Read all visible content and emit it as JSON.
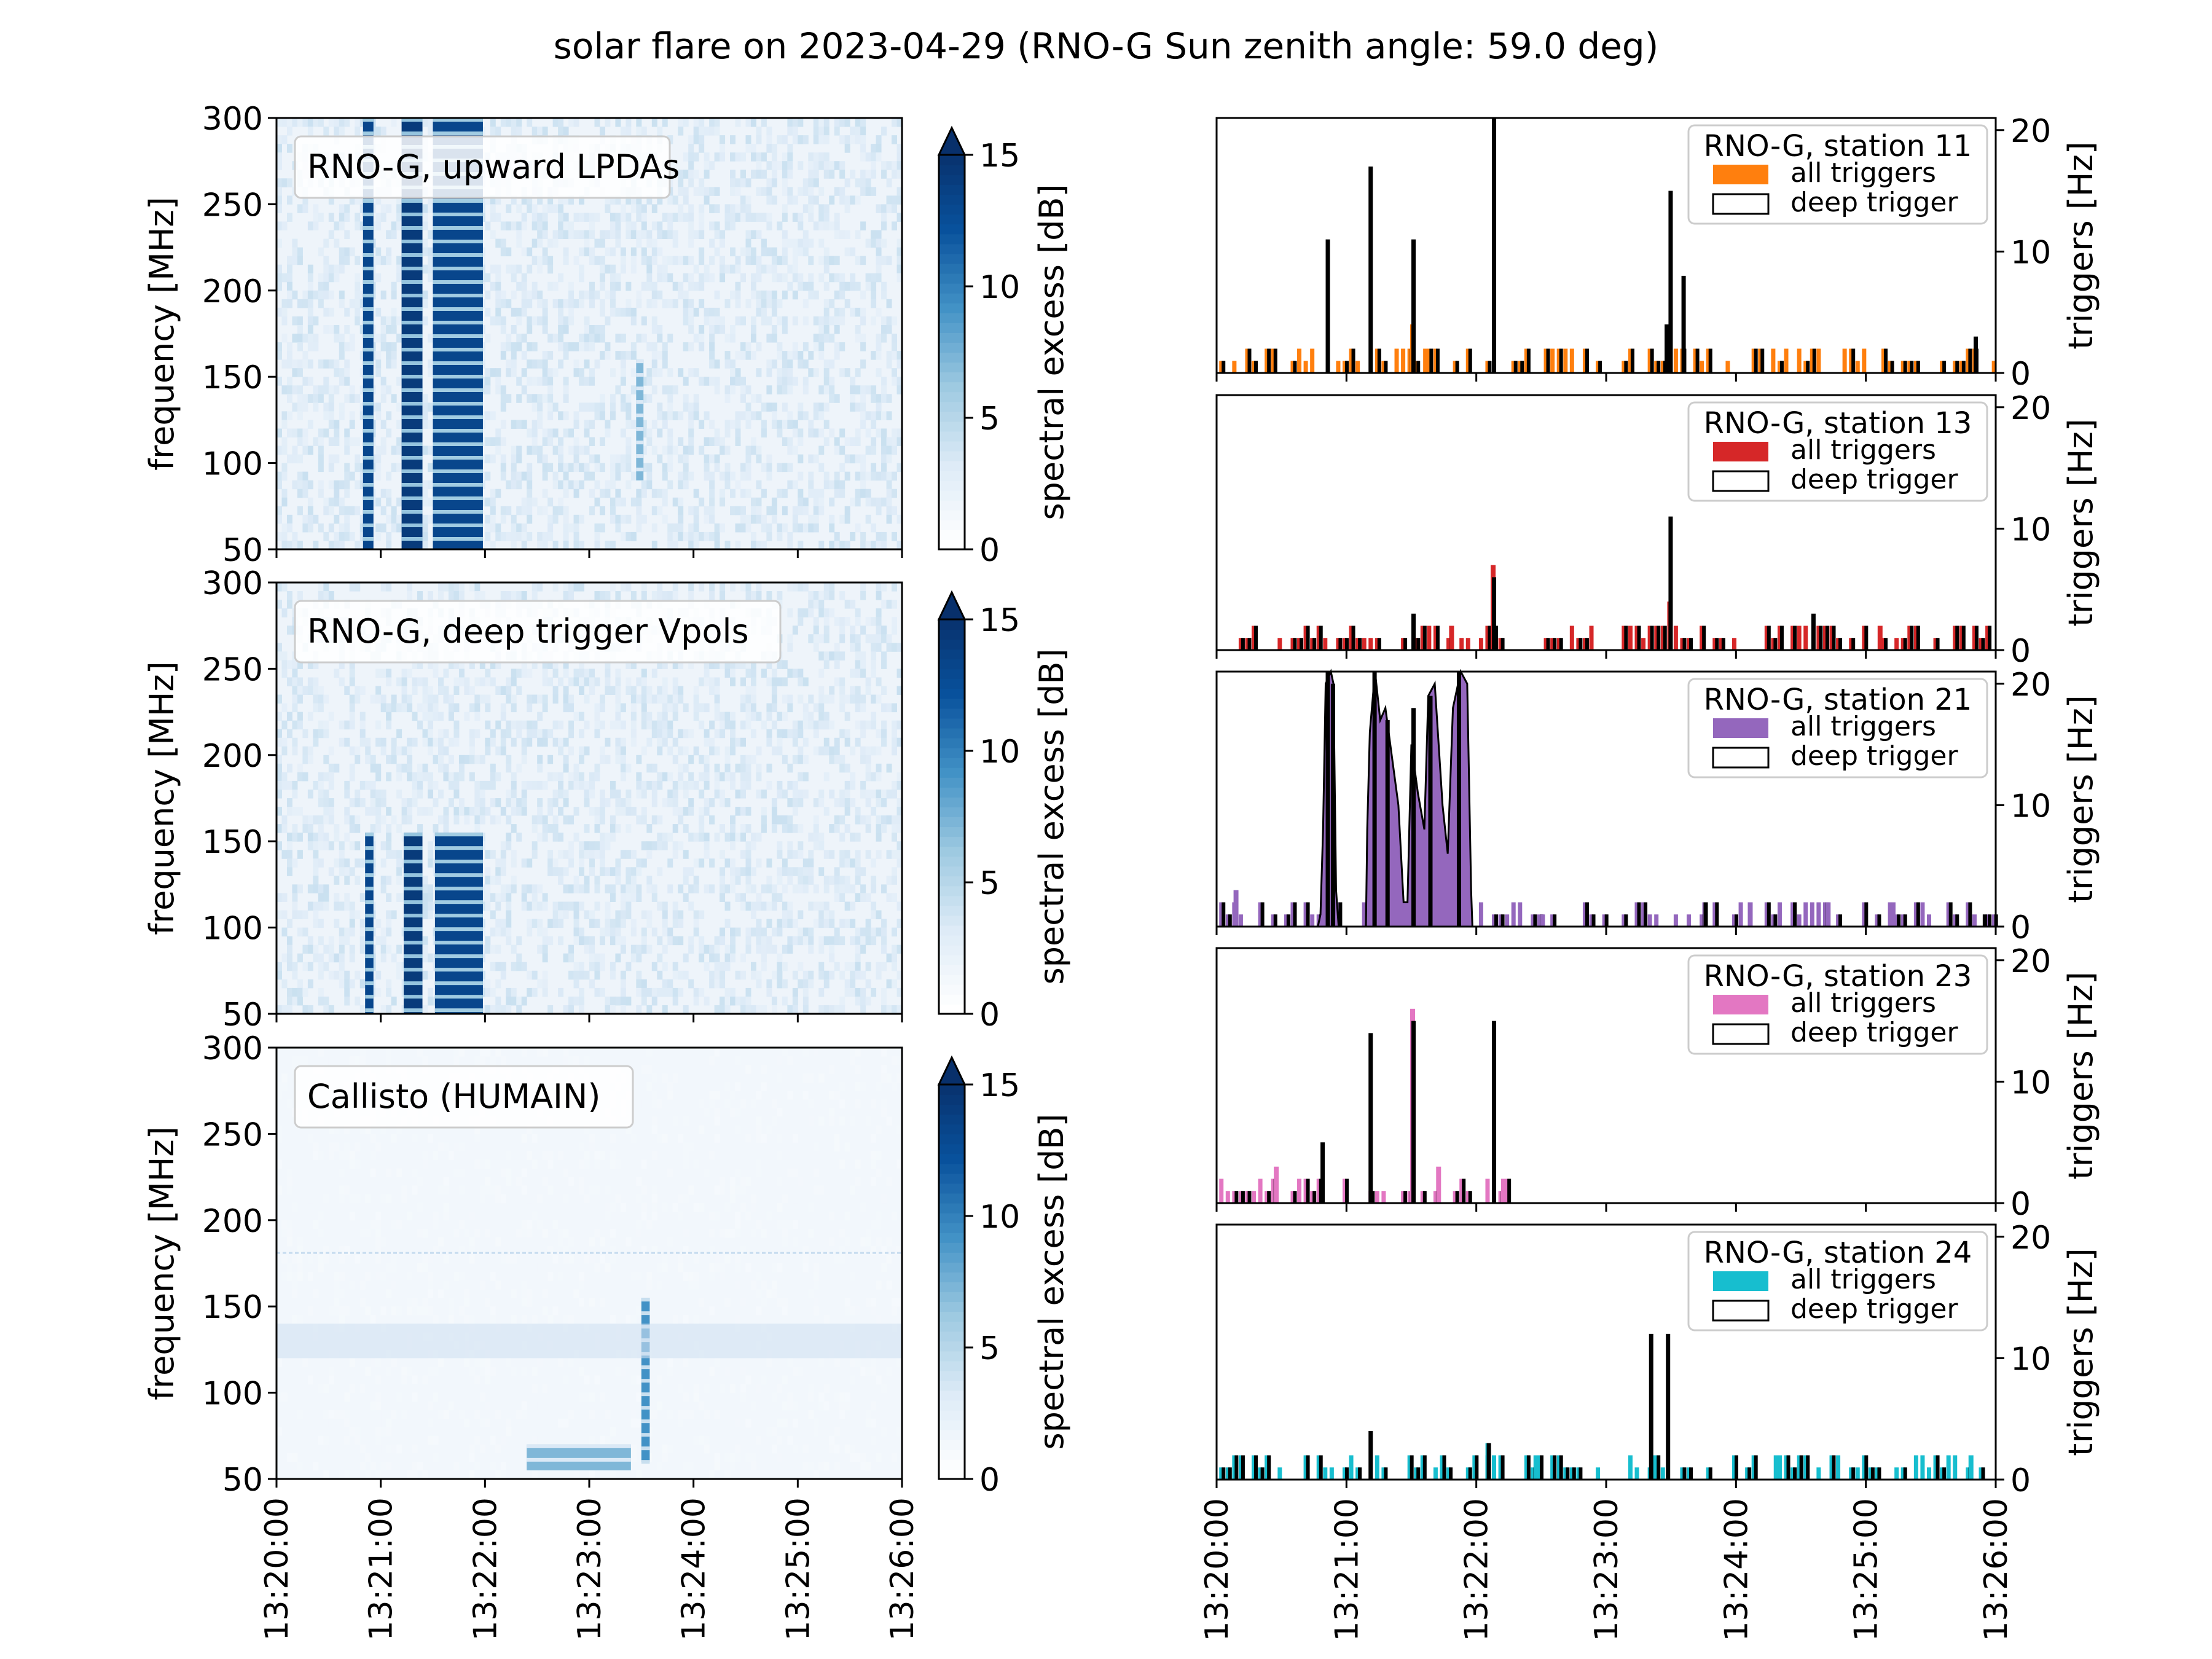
{
  "figure": {
    "title": "solar flare on 2023-04-29 (RNO-G Sun zenith angle: 59.0 deg)"
  },
  "time_ticks": [
    "13:20:00",
    "13:21:00",
    "13:22:00",
    "13:23:00",
    "13:24:00",
    "13:25:00",
    "13:26:00"
  ],
  "chart_data": [
    {
      "type": "heatmap",
      "panel": "spectrogram-1",
      "label": "RNO-G, upward LPDAs",
      "ylabel": "frequency [MHz]",
      "ylim": [
        50,
        300
      ],
      "yticks": [
        50,
        100,
        150,
        200,
        250,
        300
      ],
      "xlim": [
        "13:20:00",
        "13:26:00"
      ],
      "colorbar": {
        "label": "spectral excess [dB]",
        "range": [
          0,
          15
        ],
        "ticks": [
          0,
          5,
          10,
          15
        ],
        "extend": "max"
      },
      "bursts": [
        {
          "t0": 0.83,
          "t1": 0.93,
          "fmin": 50,
          "fmax": 300,
          "level": 13
        },
        {
          "t0": 1.2,
          "t1": 1.4,
          "fmin": 50,
          "fmax": 300,
          "level": 14
        },
        {
          "t0": 1.5,
          "t1": 1.98,
          "fmin": 50,
          "fmax": 300,
          "level": 13
        },
        {
          "t0": 3.45,
          "t1": 3.52,
          "fmin": 90,
          "fmax": 160,
          "level": 7
        }
      ]
    },
    {
      "type": "heatmap",
      "panel": "spectrogram-2",
      "label": "RNO-G, deep trigger Vpols",
      "ylabel": "frequency [MHz]",
      "ylim": [
        50,
        300
      ],
      "yticks": [
        50,
        100,
        150,
        200,
        250,
        300
      ],
      "xlim": [
        "13:20:00",
        "13:26:00"
      ],
      "colorbar": {
        "label": "spectral excess [dB]",
        "range": [
          0,
          15
        ],
        "ticks": [
          0,
          5,
          10,
          15
        ],
        "extend": "max"
      },
      "bursts": [
        {
          "t0": 0.85,
          "t1": 0.93,
          "fmin": 50,
          "fmax": 155,
          "level": 13
        },
        {
          "t0": 1.22,
          "t1": 1.4,
          "fmin": 50,
          "fmax": 155,
          "level": 14
        },
        {
          "t0": 1.52,
          "t1": 1.98,
          "fmin": 50,
          "fmax": 155,
          "level": 13
        }
      ]
    },
    {
      "type": "heatmap",
      "panel": "spectrogram-3",
      "label": "Callisto (HUMAIN)",
      "ylabel": "frequency [MHz]",
      "ylim": [
        50,
        300
      ],
      "yticks": [
        50,
        100,
        150,
        200,
        250,
        300
      ],
      "xlim": [
        "13:20:00",
        "13:26:00"
      ],
      "colorbar": {
        "label": "spectral excess [dB]",
        "range": [
          0,
          15
        ],
        "ticks": [
          0,
          5,
          10,
          15
        ],
        "extend": "max"
      },
      "bursts": [
        {
          "t0": 2.4,
          "t1": 3.4,
          "fmin": 55,
          "fmax": 70,
          "level": 7
        },
        {
          "t0": 3.5,
          "t1": 3.58,
          "fmin": 60,
          "fmax": 155,
          "level": 9
        }
      ]
    },
    {
      "type": "bar",
      "panel": "trigger-station-11",
      "legend_title": "RNO-G, station 11",
      "legend": [
        "all triggers",
        "deep trigger"
      ],
      "legend_position": "upper right",
      "color": "#ff7f0e",
      "ylabel": "triggers [Hz]",
      "ylim": [
        0,
        21
      ],
      "yticks": [
        0,
        10,
        20
      ],
      "xlim": [
        "13:20:00",
        "13:26:00"
      ],
      "deep_trigger_spikes": [
        [
          0.84,
          11
        ],
        [
          1.17,
          17
        ],
        [
          1.5,
          11
        ],
        [
          2.12,
          21
        ],
        [
          3.45,
          4
        ],
        [
          3.48,
          15
        ],
        [
          3.58,
          8
        ],
        [
          5.83,
          3
        ]
      ],
      "all_trigger_spikes": [
        [
          1.5,
          4
        ],
        [
          1.6,
          2
        ],
        [
          3.48,
          2
        ],
        [
          3.58,
          2
        ]
      ]
    },
    {
      "type": "bar",
      "panel": "trigger-station-13",
      "legend_title": "RNO-G, station 13",
      "legend": [
        "all triggers",
        "deep trigger"
      ],
      "legend_position": "upper right",
      "color": "#d62728",
      "ylabel": "triggers [Hz]",
      "ylim": [
        0,
        21
      ],
      "yticks": [
        0,
        10,
        20
      ],
      "xlim": [
        "13:20:00",
        "13:26:00"
      ],
      "deep_trigger_spikes": [
        [
          1.5,
          3
        ],
        [
          2.12,
          6
        ],
        [
          3.48,
          11
        ],
        [
          4.58,
          3
        ]
      ],
      "all_trigger_spikes": [
        [
          2.12,
          7
        ],
        [
          3.48,
          4
        ],
        [
          1.8,
          2
        ],
        [
          5.1,
          2
        ]
      ]
    },
    {
      "type": "area",
      "panel": "trigger-station-21",
      "legend_title": "RNO-G, station 21",
      "legend": [
        "all triggers",
        "deep trigger"
      ],
      "legend_position": "upper right",
      "color": "#9467bd",
      "ylabel": "triggers [Hz]",
      "ylim": [
        0,
        21
      ],
      "yticks": [
        0,
        10,
        20
      ],
      "xlim": [
        "13:20:00",
        "13:26:00"
      ],
      "all_triggers_envelope": [
        [
          0.78,
          0
        ],
        [
          0.8,
          1
        ],
        [
          0.82,
          8
        ],
        [
          0.84,
          20
        ],
        [
          0.88,
          21
        ],
        [
          0.9,
          20
        ],
        [
          0.92,
          3
        ],
        [
          0.94,
          0
        ],
        [
          1.15,
          0
        ],
        [
          1.16,
          8
        ],
        [
          1.18,
          16
        ],
        [
          1.22,
          21
        ],
        [
          1.26,
          17
        ],
        [
          1.3,
          18
        ],
        [
          1.35,
          14
        ],
        [
          1.4,
          10
        ],
        [
          1.44,
          2
        ],
        [
          1.47,
          2
        ],
        [
          1.5,
          15
        ],
        [
          1.55,
          11
        ],
        [
          1.6,
          8
        ],
        [
          1.63,
          19
        ],
        [
          1.68,
          20
        ],
        [
          1.74,
          10
        ],
        [
          1.78,
          6
        ],
        [
          1.82,
          18
        ],
        [
          1.88,
          21
        ],
        [
          1.93,
          20
        ],
        [
          1.96,
          3
        ],
        [
          1.97,
          0
        ]
      ],
      "deep_trigger_spikes": [
        [
          0.84,
          21
        ],
        [
          0.88,
          20
        ],
        [
          1.2,
          21
        ],
        [
          1.3,
          17
        ],
        [
          1.5,
          18
        ],
        [
          1.63,
          19
        ],
        [
          1.85,
          21
        ],
        [
          3.75,
          2
        ],
        [
          5.9,
          1
        ]
      ],
      "all_trigger_spikes": [
        [
          0.14,
          3
        ],
        [
          2.5,
          1
        ],
        [
          3.75,
          2
        ],
        [
          4.1,
          2
        ],
        [
          4.7,
          2
        ],
        [
          5.2,
          2
        ]
      ]
    },
    {
      "type": "bar",
      "panel": "trigger-station-23",
      "legend_title": "RNO-G, station 23",
      "legend": [
        "all triggers",
        "deep trigger"
      ],
      "legend_position": "upper right",
      "color": "#e377c2",
      "ylabel": "triggers [Hz]",
      "ylim": [
        0,
        21
      ],
      "yticks": [
        0,
        10,
        20
      ],
      "xlim": [
        "13:20:00",
        "13:26:00"
      ],
      "data_end": "13:22:17",
      "deep_trigger_spikes": [
        [
          0.8,
          5
        ],
        [
          1.17,
          14
        ],
        [
          1.5,
          15
        ],
        [
          2.12,
          15
        ]
      ],
      "all_trigger_spikes": [
        [
          1.5,
          16
        ],
        [
          0.45,
          3
        ],
        [
          1.7,
          3
        ],
        [
          2.2,
          2
        ]
      ]
    },
    {
      "type": "bar",
      "panel": "trigger-station-24",
      "legend_title": "RNO-G, station 24",
      "legend": [
        "all triggers",
        "deep trigger"
      ],
      "legend_position": "upper right",
      "color": "#17becf",
      "ylabel": "triggers [Hz]",
      "ylim": [
        0,
        21
      ],
      "yticks": [
        0,
        10,
        20
      ],
      "xlim": [
        "13:20:00",
        "13:26:00"
      ],
      "deep_trigger_spikes": [
        [
          1.17,
          4
        ],
        [
          2.08,
          3
        ],
        [
          3.33,
          12
        ],
        [
          3.46,
          12
        ]
      ],
      "all_trigger_spikes": [
        [
          2.08,
          3
        ],
        [
          2.45,
          2
        ],
        [
          3.35,
          2
        ],
        [
          4.3,
          2
        ],
        [
          5.8,
          2
        ]
      ]
    }
  ]
}
